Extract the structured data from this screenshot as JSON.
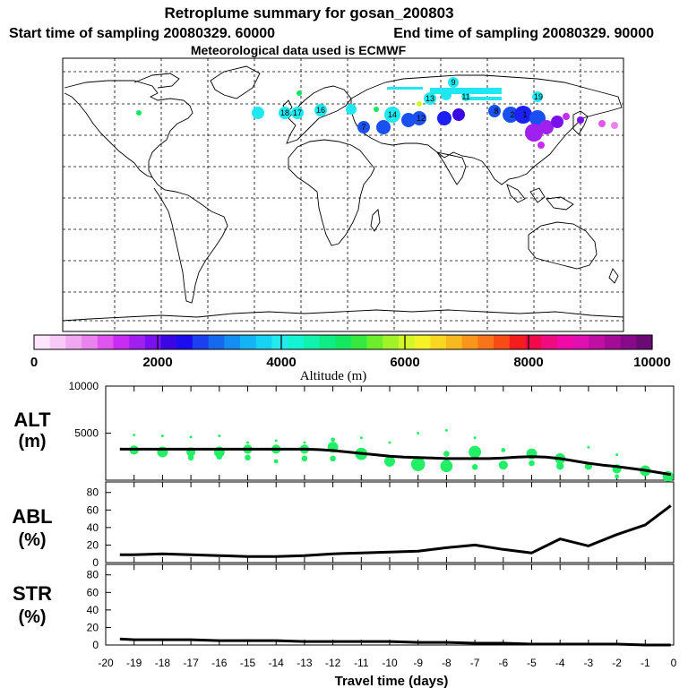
{
  "header": {
    "title": "Retroplume summary for gosan_200803",
    "start_label": "Start time of sampling 20080329. 60000",
    "end_label": "End time of sampling 20080329. 90000",
    "met_label": "Meteorological data used is ECMWF"
  },
  "colorbar": {
    "label": "Altitude (m)",
    "ticks": [
      "0",
      "2000",
      "4000",
      "6000",
      "8000",
      "10000"
    ],
    "colors": [
      "#fde6fb",
      "#f8c8f6",
      "#f2a8f0",
      "#ea83ee",
      "#e055f0",
      "#c82cf2",
      "#a020f0",
      "#7a10f0",
      "#3b06e4",
      "#1c0cf0",
      "#1a40f0",
      "#1668ec",
      "#148ef0",
      "#14b4f4",
      "#18d2f4",
      "#24eaee",
      "#14f4d4",
      "#10f2ae",
      "#10ec86",
      "#14e860",
      "#36e840",
      "#6cee2c",
      "#a2f22a",
      "#d2f628",
      "#f4f226",
      "#f8d622",
      "#f8b820",
      "#f8961c",
      "#f8741a",
      "#f84c16",
      "#f41c1c",
      "#f00a4c",
      "#f00a80",
      "#f00aa8",
      "#e010b0",
      "#c010a4",
      "#a40c98",
      "#880a8a",
      "#6a0a74"
    ]
  },
  "map": {
    "plume_numbers": [
      "19",
      "18",
      "17",
      "16",
      "14",
      "13",
      "12",
      "11",
      "9",
      "8",
      "7",
      "2",
      "1"
    ]
  },
  "colors": {
    "altitude_markers": "#22ee66",
    "series_line": "#000000",
    "map_low": "#a020f0",
    "map_mid": "#1a50f0",
    "map_high": "#20e8f0"
  },
  "chart_data": [
    {
      "type": "line",
      "name": "ALT",
      "ylabel_line1": "ALT",
      "ylabel_line2": "(m)",
      "ytick_labels": [
        "5000",
        "10000"
      ],
      "ylim": [
        0,
        10000
      ],
      "x": [
        -19.5,
        -19,
        -18.5,
        -18,
        -17.5,
        -17,
        -16.5,
        -16,
        -15.5,
        -15,
        -14.5,
        -14,
        -13.5,
        -13,
        -12.5,
        -12,
        -11.5,
        -11,
        -10.5,
        -10,
        -9.5,
        -9,
        -8.5,
        -8,
        -7.5,
        -7,
        -6.5,
        -6,
        -5.5,
        -5,
        -4.5,
        -4,
        -3.5,
        -3,
        -2.5,
        -2,
        -1.5,
        -1,
        -0.5,
        -0.1
      ],
      "values": [
        3300,
        3300,
        3300,
        3300,
        3300,
        3300,
        3300,
        3300,
        3300,
        3300,
        3300,
        3300,
        3300,
        3300,
        3250,
        3150,
        3000,
        2850,
        2700,
        2550,
        2450,
        2400,
        2350,
        2300,
        2300,
        2300,
        2300,
        2350,
        2450,
        2500,
        2450,
        2300,
        2050,
        1800,
        1600,
        1450,
        1250,
        1050,
        800,
        600
      ],
      "marker_points": [
        {
          "x": -19,
          "y": 3200,
          "s": 5
        },
        {
          "x": -19,
          "y": 4800,
          "s": 1
        },
        {
          "x": -18,
          "y": 3000,
          "s": 6
        },
        {
          "x": -18,
          "y": 4700,
          "s": 1
        },
        {
          "x": -17,
          "y": 3000,
          "s": 5
        },
        {
          "x": -17,
          "y": 2400,
          "s": 3
        },
        {
          "x": -17,
          "y": 4600,
          "s": 1
        },
        {
          "x": -16,
          "y": 3000,
          "s": 6
        },
        {
          "x": -16,
          "y": 2500,
          "s": 3
        },
        {
          "x": -16,
          "y": 4700,
          "s": 1
        },
        {
          "x": -15,
          "y": 3300,
          "s": 5
        },
        {
          "x": -15,
          "y": 2400,
          "s": 3
        },
        {
          "x": -15,
          "y": 4000,
          "s": 1
        },
        {
          "x": -14,
          "y": 3300,
          "s": 5
        },
        {
          "x": -14,
          "y": 2000,
          "s": 2
        },
        {
          "x": -14,
          "y": 4200,
          "s": 1
        },
        {
          "x": -13,
          "y": 3300,
          "s": 5
        },
        {
          "x": -13,
          "y": 2300,
          "s": 3
        },
        {
          "x": -13,
          "y": 4000,
          "s": 1
        },
        {
          "x": -12,
          "y": 3500,
          "s": 6
        },
        {
          "x": -12,
          "y": 2300,
          "s": 3
        },
        {
          "x": -12,
          "y": 4300,
          "s": 2
        },
        {
          "x": -11,
          "y": 2800,
          "s": 7
        },
        {
          "x": -11,
          "y": 4500,
          "s": 1
        },
        {
          "x": -10,
          "y": 2000,
          "s": 6
        },
        {
          "x": -10,
          "y": 4000,
          "s": 1
        },
        {
          "x": -9,
          "y": 1700,
          "s": 8
        },
        {
          "x": -9,
          "y": 5000,
          "s": 1
        },
        {
          "x": -8,
          "y": 1500,
          "s": 7
        },
        {
          "x": -8,
          "y": 2800,
          "s": 3
        },
        {
          "x": -8,
          "y": 5300,
          "s": 1
        },
        {
          "x": -7,
          "y": 3000,
          "s": 7
        },
        {
          "x": -7,
          "y": 1400,
          "s": 3
        },
        {
          "x": -7,
          "y": 4500,
          "s": 1
        },
        {
          "x": -6,
          "y": 1600,
          "s": 5
        },
        {
          "x": -6,
          "y": 3200,
          "s": 2
        },
        {
          "x": -5,
          "y": 2800,
          "s": 6
        },
        {
          "x": -5,
          "y": 1800,
          "s": 3
        },
        {
          "x": -4,
          "y": 2300,
          "s": 6
        },
        {
          "x": -4,
          "y": 1500,
          "s": 4
        },
        {
          "x": -3,
          "y": 1500,
          "s": 4
        },
        {
          "x": -3,
          "y": 3500,
          "s": 1
        },
        {
          "x": -2,
          "y": 1200,
          "s": 5
        },
        {
          "x": -2,
          "y": 2700,
          "s": 1
        },
        {
          "x": -2,
          "y": 400,
          "s": 2
        },
        {
          "x": -1,
          "y": 1000,
          "s": 6
        },
        {
          "x": -0.2,
          "y": 400,
          "s": 6
        }
      ]
    },
    {
      "type": "line",
      "name": "ABL",
      "ylabel_line1": "ABL",
      "ylabel_line2": "(%)",
      "ytick_labels": [
        "0",
        "20",
        "40",
        "60",
        "80"
      ],
      "ylim": [
        0,
        92
      ],
      "x": [
        -19.5,
        -19,
        -18,
        -17,
        -16,
        -15,
        -14,
        -13,
        -12,
        -11,
        -10,
        -9,
        -8,
        -7,
        -6,
        -5,
        -4,
        -3,
        -2,
        -1,
        -0.1
      ],
      "values": [
        9,
        9,
        10,
        9,
        8,
        7,
        7,
        8,
        10,
        11,
        12,
        13,
        17,
        20,
        15,
        11,
        27,
        19,
        32,
        43,
        65
      ]
    },
    {
      "type": "line",
      "name": "STR",
      "ylabel_line1": "STR",
      "ylabel_line2": "(%)",
      "ytick_labels": [
        "0",
        "20",
        "40",
        "60",
        "80"
      ],
      "ylim": [
        0,
        92
      ],
      "x": [
        -19.5,
        -19,
        -18,
        -17,
        -16,
        -15,
        -14,
        -13,
        -12,
        -11,
        -10,
        -9,
        -8,
        -7,
        -6,
        -5,
        -4,
        -3,
        -2,
        -1,
        -0.1
      ],
      "values": [
        7,
        6,
        6,
        6,
        5,
        5,
        5,
        4,
        4,
        4,
        4,
        3,
        3,
        2,
        2,
        1,
        1,
        1,
        1,
        0,
        0
      ]
    },
    {
      "type": "axis",
      "name": "travel-time",
      "xlabel": "Travel time (days)",
      "xlim": [
        -20,
        0
      ],
      "xtick_labels": [
        "-20",
        "-19",
        "-18",
        "-17",
        "-16",
        "-15",
        "-14",
        "-13",
        "-12",
        "-11",
        "-10",
        "-9",
        "-8",
        "-7",
        "-6",
        "-5",
        "-4",
        "-3",
        "-2",
        "-1",
        "0"
      ]
    }
  ]
}
